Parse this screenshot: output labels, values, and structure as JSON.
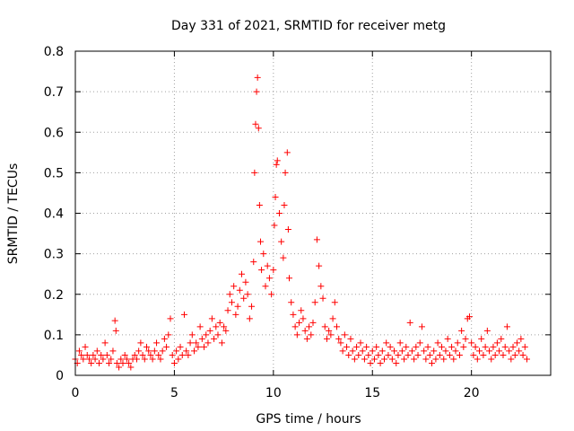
{
  "colors": {
    "series": "#ff0000",
    "grid": "#a0a0a0",
    "axis": "#000000"
  },
  "chart_data": {
    "type": "scatter",
    "title": "Day 331 of 2021, SRMTID for receiver metg",
    "xlabel": "GPS time / hours",
    "ylabel": "SRMTID / TECUs",
    "xlim": [
      0,
      24
    ],
    "ylim": [
      0,
      0.8
    ],
    "xticks": [
      0,
      5,
      10,
      15,
      20
    ],
    "yticks": [
      0,
      0.1,
      0.2,
      0.3,
      0.4,
      0.5,
      0.6,
      0.7,
      0.8
    ],
    "xtick_labels": [
      "0",
      "5",
      "10",
      "15",
      "20"
    ],
    "ytick_labels": [
      "0",
      "0.1",
      "0.2",
      "0.3",
      "0.4",
      "0.5",
      "0.6",
      "0.7",
      "0.8"
    ],
    "grid": true,
    "marker": "+",
    "series": [
      {
        "name": "SRMTID",
        "points": [
          [
            0.0,
            0.04
          ],
          [
            0.1,
            0.03
          ],
          [
            0.2,
            0.06
          ],
          [
            0.3,
            0.05
          ],
          [
            0.4,
            0.04
          ],
          [
            0.5,
            0.07
          ],
          [
            0.6,
            0.05
          ],
          [
            0.7,
            0.04
          ],
          [
            0.8,
            0.03
          ],
          [
            0.9,
            0.05
          ],
          [
            1.0,
            0.04
          ],
          [
            1.1,
            0.06
          ],
          [
            1.2,
            0.03
          ],
          [
            1.3,
            0.05
          ],
          [
            1.4,
            0.04
          ],
          [
            1.5,
            0.08
          ],
          [
            1.6,
            0.05
          ],
          [
            1.7,
            0.03
          ],
          [
            1.8,
            0.04
          ],
          [
            1.9,
            0.06
          ],
          [
            2.0,
            0.135
          ],
          [
            2.05,
            0.11
          ],
          [
            2.1,
            0.03
          ],
          [
            2.2,
            0.02
          ],
          [
            2.3,
            0.04
          ],
          [
            2.4,
            0.03
          ],
          [
            2.5,
            0.05
          ],
          [
            2.6,
            0.04
          ],
          [
            2.7,
            0.03
          ],
          [
            2.8,
            0.02
          ],
          [
            2.9,
            0.04
          ],
          [
            3.0,
            0.05
          ],
          [
            3.1,
            0.04
          ],
          [
            3.2,
            0.06
          ],
          [
            3.3,
            0.08
          ],
          [
            3.4,
            0.05
          ],
          [
            3.5,
            0.04
          ],
          [
            3.6,
            0.07
          ],
          [
            3.7,
            0.06
          ],
          [
            3.8,
            0.05
          ],
          [
            3.9,
            0.04
          ],
          [
            4.0,
            0.06
          ],
          [
            4.1,
            0.08
          ],
          [
            4.2,
            0.05
          ],
          [
            4.3,
            0.04
          ],
          [
            4.4,
            0.06
          ],
          [
            4.5,
            0.09
          ],
          [
            4.6,
            0.07
          ],
          [
            4.7,
            0.1
          ],
          [
            4.8,
            0.14
          ],
          [
            4.9,
            0.05
          ],
          [
            5.0,
            0.03
          ],
          [
            5.1,
            0.06
          ],
          [
            5.2,
            0.04
          ],
          [
            5.3,
            0.07
          ],
          [
            5.4,
            0.05
          ],
          [
            5.5,
            0.15
          ],
          [
            5.6,
            0.06
          ],
          [
            5.7,
            0.05
          ],
          [
            5.8,
            0.08
          ],
          [
            5.9,
            0.1
          ],
          [
            6.0,
            0.06
          ],
          [
            6.1,
            0.08
          ],
          [
            6.2,
            0.07
          ],
          [
            6.3,
            0.12
          ],
          [
            6.4,
            0.09
          ],
          [
            6.5,
            0.07
          ],
          [
            6.6,
            0.1
          ],
          [
            6.7,
            0.08
          ],
          [
            6.8,
            0.11
          ],
          [
            6.9,
            0.14
          ],
          [
            7.0,
            0.09
          ],
          [
            7.1,
            0.12
          ],
          [
            7.2,
            0.1
          ],
          [
            7.3,
            0.13
          ],
          [
            7.4,
            0.08
          ],
          [
            7.5,
            0.12
          ],
          [
            7.6,
            0.11
          ],
          [
            7.7,
            0.16
          ],
          [
            7.8,
            0.2
          ],
          [
            7.9,
            0.18
          ],
          [
            8.0,
            0.22
          ],
          [
            8.1,
            0.15
          ],
          [
            8.2,
            0.17
          ],
          [
            8.3,
            0.21
          ],
          [
            8.4,
            0.25
          ],
          [
            8.5,
            0.19
          ],
          [
            8.6,
            0.23
          ],
          [
            8.7,
            0.2
          ],
          [
            8.8,
            0.14
          ],
          [
            8.9,
            0.17
          ],
          [
            9.0,
            0.28
          ],
          [
            9.05,
            0.5
          ],
          [
            9.1,
            0.62
          ],
          [
            9.15,
            0.7
          ],
          [
            9.2,
            0.735
          ],
          [
            9.25,
            0.61
          ],
          [
            9.3,
            0.42
          ],
          [
            9.35,
            0.33
          ],
          [
            9.4,
            0.26
          ],
          [
            9.5,
            0.3
          ],
          [
            9.6,
            0.22
          ],
          [
            9.7,
            0.27
          ],
          [
            9.8,
            0.24
          ],
          [
            9.9,
            0.2
          ],
          [
            10.0,
            0.26
          ],
          [
            10.05,
            0.37
          ],
          [
            10.1,
            0.44
          ],
          [
            10.15,
            0.52
          ],
          [
            10.2,
            0.53
          ],
          [
            10.3,
            0.4
          ],
          [
            10.4,
            0.33
          ],
          [
            10.5,
            0.29
          ],
          [
            10.55,
            0.42
          ],
          [
            10.6,
            0.5
          ],
          [
            10.7,
            0.55
          ],
          [
            10.75,
            0.36
          ],
          [
            10.8,
            0.24
          ],
          [
            10.9,
            0.18
          ],
          [
            11.0,
            0.15
          ],
          [
            11.1,
            0.12
          ],
          [
            11.2,
            0.1
          ],
          [
            11.3,
            0.13
          ],
          [
            11.4,
            0.16
          ],
          [
            11.5,
            0.14
          ],
          [
            11.6,
            0.11
          ],
          [
            11.7,
            0.09
          ],
          [
            11.8,
            0.12
          ],
          [
            11.9,
            0.1
          ],
          [
            12.0,
            0.13
          ],
          [
            12.1,
            0.18
          ],
          [
            12.2,
            0.335
          ],
          [
            12.3,
            0.27
          ],
          [
            12.4,
            0.22
          ],
          [
            12.5,
            0.19
          ],
          [
            12.6,
            0.12
          ],
          [
            12.7,
            0.09
          ],
          [
            12.8,
            0.11
          ],
          [
            12.9,
            0.1
          ],
          [
            13.0,
            0.14
          ],
          [
            13.1,
            0.18
          ],
          [
            13.2,
            0.12
          ],
          [
            13.3,
            0.09
          ],
          [
            13.4,
            0.08
          ],
          [
            13.5,
            0.06
          ],
          [
            13.6,
            0.1
          ],
          [
            13.7,
            0.07
          ],
          [
            13.8,
            0.05
          ],
          [
            13.9,
            0.09
          ],
          [
            14.0,
            0.06
          ],
          [
            14.1,
            0.04
          ],
          [
            14.2,
            0.07
          ],
          [
            14.3,
            0.05
          ],
          [
            14.4,
            0.08
          ],
          [
            14.5,
            0.06
          ],
          [
            14.6,
            0.04
          ],
          [
            14.7,
            0.07
          ],
          [
            14.8,
            0.05
          ],
          [
            14.9,
            0.03
          ],
          [
            15.0,
            0.06
          ],
          [
            15.1,
            0.04
          ],
          [
            15.2,
            0.07
          ],
          [
            15.3,
            0.05
          ],
          [
            15.4,
            0.03
          ],
          [
            15.5,
            0.06
          ],
          [
            15.6,
            0.04
          ],
          [
            15.7,
            0.08
          ],
          [
            15.8,
            0.05
          ],
          [
            15.9,
            0.07
          ],
          [
            16.0,
            0.04
          ],
          [
            16.1,
            0.06
          ],
          [
            16.2,
            0.03
          ],
          [
            16.3,
            0.05
          ],
          [
            16.4,
            0.08
          ],
          [
            16.5,
            0.06
          ],
          [
            16.6,
            0.04
          ],
          [
            16.7,
            0.07
          ],
          [
            16.8,
            0.05
          ],
          [
            16.9,
            0.13
          ],
          [
            17.0,
            0.06
          ],
          [
            17.1,
            0.04
          ],
          [
            17.2,
            0.07
          ],
          [
            17.3,
            0.05
          ],
          [
            17.4,
            0.08
          ],
          [
            17.5,
            0.12
          ],
          [
            17.6,
            0.06
          ],
          [
            17.7,
            0.04
          ],
          [
            17.8,
            0.07
          ],
          [
            17.9,
            0.05
          ],
          [
            18.0,
            0.03
          ],
          [
            18.1,
            0.06
          ],
          [
            18.2,
            0.04
          ],
          [
            18.3,
            0.08
          ],
          [
            18.4,
            0.05
          ],
          [
            18.5,
            0.07
          ],
          [
            18.6,
            0.04
          ],
          [
            18.7,
            0.06
          ],
          [
            18.8,
            0.09
          ],
          [
            18.9,
            0.05
          ],
          [
            19.0,
            0.07
          ],
          [
            19.1,
            0.04
          ],
          [
            19.2,
            0.06
          ],
          [
            19.3,
            0.08
          ],
          [
            19.4,
            0.05
          ],
          [
            19.5,
            0.11
          ],
          [
            19.6,
            0.07
          ],
          [
            19.7,
            0.09
          ],
          [
            19.8,
            0.14
          ],
          [
            19.9,
            0.145
          ],
          [
            20.0,
            0.08
          ],
          [
            20.1,
            0.05
          ],
          [
            20.2,
            0.07
          ],
          [
            20.3,
            0.04
          ],
          [
            20.4,
            0.06
          ],
          [
            20.5,
            0.09
          ],
          [
            20.6,
            0.05
          ],
          [
            20.7,
            0.07
          ],
          [
            20.8,
            0.11
          ],
          [
            20.9,
            0.06
          ],
          [
            21.0,
            0.04
          ],
          [
            21.1,
            0.07
          ],
          [
            21.2,
            0.05
          ],
          [
            21.3,
            0.08
          ],
          [
            21.4,
            0.06
          ],
          [
            21.5,
            0.09
          ],
          [
            21.6,
            0.05
          ],
          [
            21.7,
            0.07
          ],
          [
            21.8,
            0.12
          ],
          [
            21.9,
            0.06
          ],
          [
            22.0,
            0.04
          ],
          [
            22.1,
            0.07
          ],
          [
            22.2,
            0.05
          ],
          [
            22.3,
            0.08
          ],
          [
            22.4,
            0.06
          ],
          [
            22.5,
            0.09
          ],
          [
            22.6,
            0.05
          ],
          [
            22.7,
            0.07
          ],
          [
            22.8,
            0.04
          ]
        ]
      }
    ]
  }
}
